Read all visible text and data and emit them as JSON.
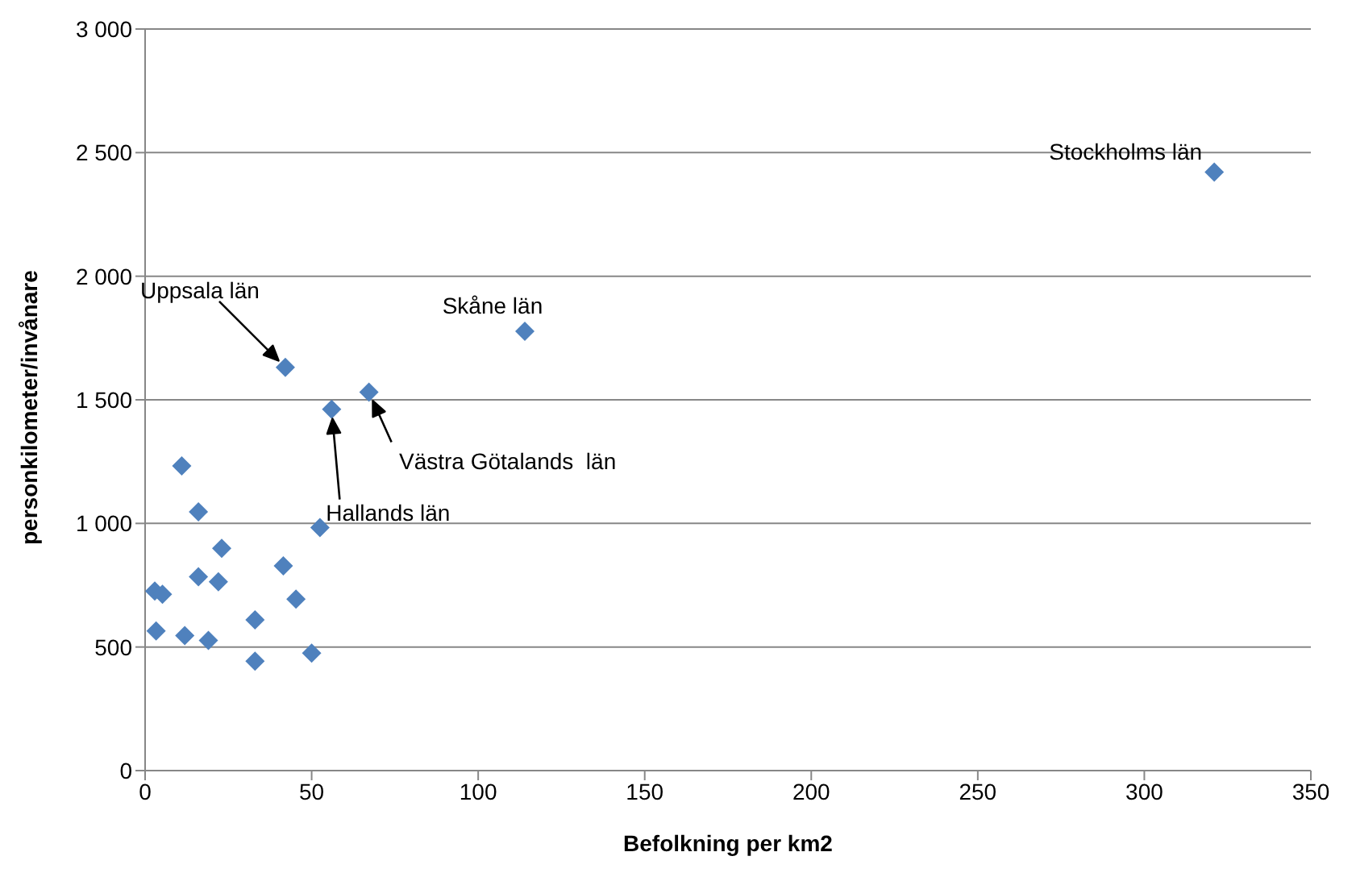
{
  "chart_data": {
    "type": "scatter",
    "xlabel": "Befolkning per km2",
    "ylabel": "personkilometer/invånare",
    "x": [
      2.9,
      5.2,
      3.3,
      11.9,
      19,
      11,
      16,
      16,
      22,
      23,
      33,
      33,
      41.5,
      45.3,
      50,
      52.5,
      42.1,
      56,
      67.2,
      114,
      321
    ],
    "values": [
      726,
      713,
      565,
      546,
      527,
      1233,
      1047,
      784,
      764,
      899,
      610,
      443,
      828,
      694,
      475,
      983,
      1631,
      1462,
      1531,
      1777,
      2421
    ],
    "color": "#4f81bd",
    "marker": "diamond",
    "grid": "y",
    "legend": false,
    "xlim": [
      0,
      350
    ],
    "xticks": [
      0,
      50,
      100,
      150,
      200,
      250,
      300,
      350
    ],
    "ylim": [
      0,
      3000
    ],
    "yticks": [
      0,
      500,
      {
        "value": 1000,
        "label": "1 000"
      },
      {
        "value": 1500,
        "label": "1 500"
      },
      {
        "value": 2000,
        "label": "2 000"
      },
      {
        "value": 2500,
        "label": "2 500"
      },
      {
        "value": 3000,
        "label": "3 000"
      }
    ],
    "annotations": [
      {
        "text": "Stockholms län",
        "x": 321,
        "y": 2421
      },
      {
        "text": "Skåne län",
        "x": 114,
        "y": 1777
      },
      "Uppsala län",
      "Hallands län",
      {
        "text": "Västra Götalands  län",
        "x": 67.2,
        "y": 1531
      }
    ]
  }
}
